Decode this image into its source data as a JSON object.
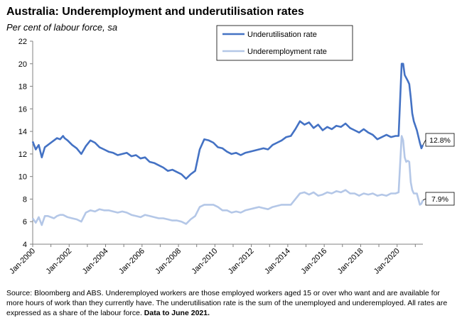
{
  "title": "Australia: Underemployment and underutilisation rates",
  "subtitle": "Per cent of labour force, sa",
  "source_text": "Source: Bloomberg and ABS. Underemployed workers are those employed workers aged 15 or over who want and are available for more hours of work than they currently have.  The underutilisation rate is the sum of the unemployed and underemployed. All rates are expressed as a share of the labour force.",
  "source_bold": "Data to June 2021.",
  "colors": {
    "underutilisation": "#4472C4",
    "underemployment": "#B4C7E7",
    "axis": "#808080"
  },
  "chart_data": {
    "type": "line",
    "title": "Australia: Underemployment and underutilisation rates",
    "ylabel": "Per cent of labour force, sa",
    "ylim": [
      4,
      22
    ],
    "yticks": [
      "4",
      "6",
      "8",
      "10",
      "12",
      "14",
      "16",
      "18",
      "20",
      "22"
    ],
    "xlim": [
      "2000-01",
      "2021-06"
    ],
    "xticks": [
      "Jan-2000",
      "Jan-2002",
      "Jan-2004",
      "Jan-2006",
      "Jan-2008",
      "Jan-2010",
      "Jan-2012",
      "Jan-2014",
      "Jan-2016",
      "Jan-2018",
      "Jan-2020"
    ],
    "grid": false,
    "legend_position": "top-center",
    "series": [
      {
        "name": "Underutilisation rate",
        "points": [
          [
            "2000-01",
            13.1
          ],
          [
            "2000-03",
            12.4
          ],
          [
            "2000-05",
            12.8
          ],
          [
            "2000-07",
            11.7
          ],
          [
            "2000-09",
            12.6
          ],
          [
            "2000-11",
            12.8
          ],
          [
            "2001-01",
            13.0
          ],
          [
            "2001-03",
            13.2
          ],
          [
            "2001-05",
            13.4
          ],
          [
            "2001-07",
            13.3
          ],
          [
            "2001-09",
            13.6
          ],
          [
            "2001-10",
            13.4
          ],
          [
            "2001-12",
            13.2
          ],
          [
            "2002-03",
            12.8
          ],
          [
            "2002-06",
            12.5
          ],
          [
            "2002-09",
            12.0
          ],
          [
            "2002-12",
            12.7
          ],
          [
            "2003-03",
            13.2
          ],
          [
            "2003-06",
            13.0
          ],
          [
            "2003-09",
            12.6
          ],
          [
            "2003-12",
            12.4
          ],
          [
            "2004-03",
            12.2
          ],
          [
            "2004-06",
            12.1
          ],
          [
            "2004-09",
            11.9
          ],
          [
            "2004-12",
            12.0
          ],
          [
            "2005-03",
            12.1
          ],
          [
            "2005-06",
            11.8
          ],
          [
            "2005-09",
            11.9
          ],
          [
            "2005-12",
            11.6
          ],
          [
            "2006-03",
            11.7
          ],
          [
            "2006-06",
            11.3
          ],
          [
            "2006-09",
            11.2
          ],
          [
            "2006-12",
            11.0
          ],
          [
            "2007-03",
            10.8
          ],
          [
            "2007-06",
            10.5
          ],
          [
            "2007-09",
            10.6
          ],
          [
            "2007-12",
            10.4
          ],
          [
            "2008-03",
            10.2
          ],
          [
            "2008-06",
            9.8
          ],
          [
            "2008-09",
            10.2
          ],
          [
            "2008-12",
            10.5
          ],
          [
            "2009-03",
            12.4
          ],
          [
            "2009-06",
            13.3
          ],
          [
            "2009-09",
            13.2
          ],
          [
            "2009-12",
            13.0
          ],
          [
            "2010-03",
            12.6
          ],
          [
            "2010-06",
            12.5
          ],
          [
            "2010-09",
            12.2
          ],
          [
            "2010-12",
            12.0
          ],
          [
            "2011-03",
            12.1
          ],
          [
            "2011-06",
            11.9
          ],
          [
            "2011-09",
            12.1
          ],
          [
            "2011-12",
            12.2
          ],
          [
            "2012-03",
            12.3
          ],
          [
            "2012-06",
            12.4
          ],
          [
            "2012-09",
            12.5
          ],
          [
            "2012-12",
            12.4
          ],
          [
            "2013-03",
            12.8
          ],
          [
            "2013-06",
            13.0
          ],
          [
            "2013-09",
            13.2
          ],
          [
            "2013-12",
            13.5
          ],
          [
            "2014-03",
            13.6
          ],
          [
            "2014-06",
            14.2
          ],
          [
            "2014-09",
            14.9
          ],
          [
            "2014-12",
            14.6
          ],
          [
            "2015-03",
            14.8
          ],
          [
            "2015-06",
            14.3
          ],
          [
            "2015-09",
            14.6
          ],
          [
            "2015-12",
            14.1
          ],
          [
            "2016-03",
            14.4
          ],
          [
            "2016-06",
            14.2
          ],
          [
            "2016-09",
            14.5
          ],
          [
            "2016-12",
            14.4
          ],
          [
            "2017-03",
            14.7
          ],
          [
            "2017-06",
            14.3
          ],
          [
            "2017-09",
            14.1
          ],
          [
            "2017-12",
            13.9
          ],
          [
            "2018-03",
            14.2
          ],
          [
            "2018-06",
            13.9
          ],
          [
            "2018-09",
            13.7
          ],
          [
            "2018-12",
            13.3
          ],
          [
            "2019-03",
            13.5
          ],
          [
            "2019-06",
            13.7
          ],
          [
            "2019-09",
            13.5
          ],
          [
            "2019-12",
            13.6
          ],
          [
            "2020-02",
            13.6
          ],
          [
            "2020-04",
            20.0
          ],
          [
            "2020-05",
            20.0
          ],
          [
            "2020-06",
            19.0
          ],
          [
            "2020-08",
            18.5
          ],
          [
            "2020-09",
            18.2
          ],
          [
            "2020-10",
            17.0
          ],
          [
            "2020-11",
            15.6
          ],
          [
            "2020-12",
            14.9
          ],
          [
            "2021-02",
            14.1
          ],
          [
            "2021-04",
            13.0
          ],
          [
            "2021-05",
            12.5
          ],
          [
            "2021-06",
            12.8
          ]
        ]
      },
      {
        "name": "Underemployment rate",
        "points": [
          [
            "2000-01",
            6.3
          ],
          [
            "2000-03",
            5.9
          ],
          [
            "2000-05",
            6.4
          ],
          [
            "2000-07",
            5.7
          ],
          [
            "2000-09",
            6.5
          ],
          [
            "2000-11",
            6.5
          ],
          [
            "2001-01",
            6.4
          ],
          [
            "2001-03",
            6.3
          ],
          [
            "2001-05",
            6.5
          ],
          [
            "2001-07",
            6.6
          ],
          [
            "2001-09",
            6.6
          ],
          [
            "2001-12",
            6.4
          ],
          [
            "2002-03",
            6.3
          ],
          [
            "2002-06",
            6.2
          ],
          [
            "2002-09",
            6.0
          ],
          [
            "2002-12",
            6.8
          ],
          [
            "2003-03",
            7.0
          ],
          [
            "2003-06",
            6.9
          ],
          [
            "2003-09",
            7.1
          ],
          [
            "2003-12",
            7.0
          ],
          [
            "2004-03",
            7.0
          ],
          [
            "2004-06",
            6.9
          ],
          [
            "2004-09",
            6.8
          ],
          [
            "2004-12",
            6.9
          ],
          [
            "2005-03",
            6.8
          ],
          [
            "2005-06",
            6.6
          ],
          [
            "2005-09",
            6.5
          ],
          [
            "2005-12",
            6.4
          ],
          [
            "2006-03",
            6.6
          ],
          [
            "2006-06",
            6.5
          ],
          [
            "2006-09",
            6.4
          ],
          [
            "2006-12",
            6.3
          ],
          [
            "2007-03",
            6.3
          ],
          [
            "2007-06",
            6.2
          ],
          [
            "2007-09",
            6.1
          ],
          [
            "2007-12",
            6.1
          ],
          [
            "2008-03",
            6.0
          ],
          [
            "2008-06",
            5.8
          ],
          [
            "2008-09",
            6.2
          ],
          [
            "2008-12",
            6.5
          ],
          [
            "2009-03",
            7.3
          ],
          [
            "2009-06",
            7.5
          ],
          [
            "2009-09",
            7.5
          ],
          [
            "2009-12",
            7.5
          ],
          [
            "2010-03",
            7.3
          ],
          [
            "2010-06",
            7.0
          ],
          [
            "2010-09",
            7.0
          ],
          [
            "2010-12",
            6.8
          ],
          [
            "2011-03",
            6.9
          ],
          [
            "2011-06",
            6.8
          ],
          [
            "2011-09",
            7.0
          ],
          [
            "2011-12",
            7.1
          ],
          [
            "2012-03",
            7.2
          ],
          [
            "2012-06",
            7.3
          ],
          [
            "2012-09",
            7.2
          ],
          [
            "2012-12",
            7.1
          ],
          [
            "2013-03",
            7.3
          ],
          [
            "2013-06",
            7.4
          ],
          [
            "2013-09",
            7.5
          ],
          [
            "2013-12",
            7.5
          ],
          [
            "2014-03",
            7.5
          ],
          [
            "2014-06",
            8.0
          ],
          [
            "2014-09",
            8.5
          ],
          [
            "2014-12",
            8.6
          ],
          [
            "2015-03",
            8.4
          ],
          [
            "2015-06",
            8.6
          ],
          [
            "2015-09",
            8.3
          ],
          [
            "2015-12",
            8.4
          ],
          [
            "2016-03",
            8.6
          ],
          [
            "2016-06",
            8.5
          ],
          [
            "2016-09",
            8.7
          ],
          [
            "2016-12",
            8.6
          ],
          [
            "2017-03",
            8.8
          ],
          [
            "2017-06",
            8.5
          ],
          [
            "2017-09",
            8.5
          ],
          [
            "2017-12",
            8.3
          ],
          [
            "2018-03",
            8.5
          ],
          [
            "2018-06",
            8.4
          ],
          [
            "2018-09",
            8.5
          ],
          [
            "2018-12",
            8.3
          ],
          [
            "2019-03",
            8.4
          ],
          [
            "2019-06",
            8.3
          ],
          [
            "2019-09",
            8.5
          ],
          [
            "2019-12",
            8.5
          ],
          [
            "2020-02",
            8.6
          ],
          [
            "2020-04",
            13.6
          ],
          [
            "2020-05",
            13.2
          ],
          [
            "2020-06",
            11.7
          ],
          [
            "2020-07",
            11.3
          ],
          [
            "2020-08",
            11.4
          ],
          [
            "2020-09",
            11.3
          ],
          [
            "2020-10",
            9.5
          ],
          [
            "2020-11",
            8.8
          ],
          [
            "2020-12",
            8.5
          ],
          [
            "2021-02",
            8.5
          ],
          [
            "2021-04",
            7.5
          ],
          [
            "2021-05",
            7.6
          ],
          [
            "2021-06",
            7.9
          ]
        ]
      }
    ],
    "end_labels": [
      "12.8%",
      "7.9%"
    ]
  }
}
